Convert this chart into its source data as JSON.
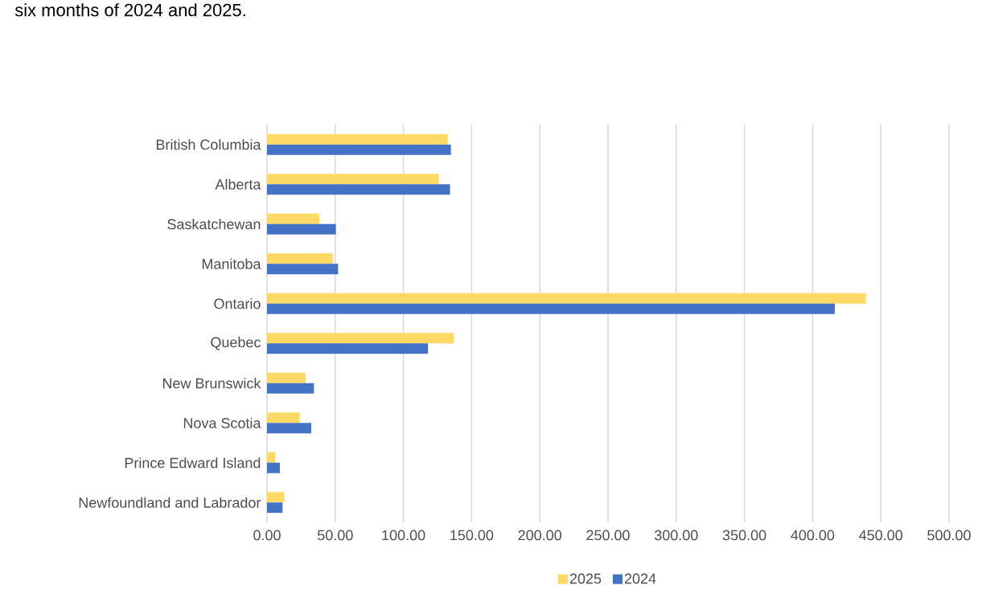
{
  "chart_data": {
    "type": "bar",
    "orientation": "horizontal",
    "title": "six months of 2024 and 2025.",
    "categories": [
      "British Columbia",
      "Alberta",
      "Saskatchewan",
      "Manitoba",
      "Ontario",
      "Quebec",
      "New Brunswick",
      "Nova Scotia",
      "Prince Edward Island",
      "Newfoundland and Labrador"
    ],
    "series": [
      {
        "name": "2025",
        "color": "#ffd966",
        "values": [
          132.5,
          126,
          38.3,
          48.3,
          439,
          137,
          28.3,
          24,
          6.1,
          12.8
        ]
      },
      {
        "name": "2024",
        "color": "#4472c4",
        "values": [
          134.8,
          134.2,
          50.5,
          52.1,
          416.3,
          118,
          34.4,
          32.4,
          9.4,
          11.4
        ]
      }
    ],
    "xlim": [
      0,
      500
    ],
    "xticks": [
      {
        "value": 0,
        "label": "0.00"
      },
      {
        "value": 50,
        "label": "50.00"
      },
      {
        "value": 100,
        "label": "100.00"
      },
      {
        "value": 150,
        "label": "150.00"
      },
      {
        "value": 200,
        "label": "200.00"
      },
      {
        "value": 250,
        "label": "250.00"
      },
      {
        "value": 300,
        "label": "300.00"
      },
      {
        "value": 350,
        "label": "350.00"
      },
      {
        "value": 400,
        "label": "400.00"
      },
      {
        "value": 450,
        "label": "450.00"
      },
      {
        "value": 500,
        "label": "500.00"
      }
    ],
    "grid": "x",
    "legend": "bottom"
  }
}
